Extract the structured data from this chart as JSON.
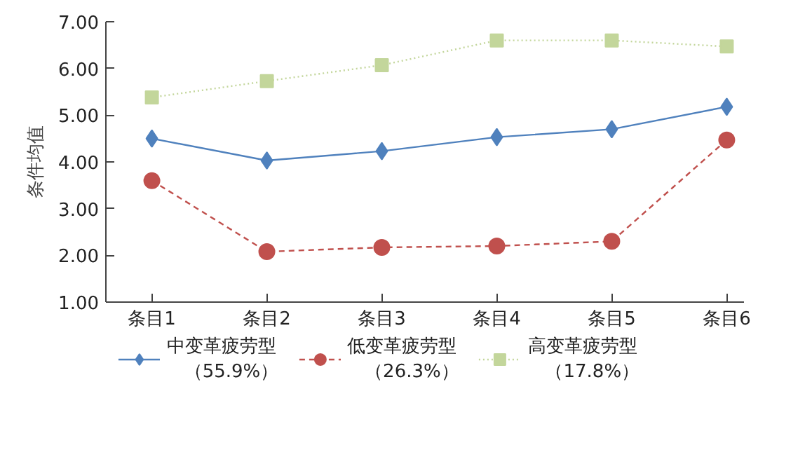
{
  "chart_data": {
    "type": "line",
    "ylabel": "条件均值",
    "categories": [
      "条目1",
      "条目2",
      "条目3",
      "条目4",
      "条目5",
      "条目6"
    ],
    "ylim": [
      1.0,
      7.0
    ],
    "yticks": [
      {
        "value": 1,
        "label": "1.00"
      },
      {
        "value": 2,
        "label": "2.00"
      },
      {
        "value": 3,
        "label": "3.00"
      },
      {
        "value": 4,
        "label": "4.00"
      },
      {
        "value": 5,
        "label": "5.00"
      },
      {
        "value": 6,
        "label": "6.00"
      },
      {
        "value": 7,
        "label": "7.00"
      }
    ],
    "grid": false,
    "legend": "bottom",
    "series": [
      {
        "name": "中变革疲劳型（55.9%）",
        "color": "#4f81bd",
        "marker": "diamond",
        "line_style": "solid",
        "values": [
          4.5,
          4.03,
          4.23,
          4.53,
          4.7,
          5.18
        ]
      },
      {
        "name": "低变革疲劳型（26.3%）",
        "color": "#c0504d",
        "marker": "circle",
        "line_style": "dashed",
        "values": [
          3.6,
          2.08,
          2.17,
          2.2,
          2.3,
          4.47
        ]
      },
      {
        "name": "高变革疲劳型（17.8%）",
        "color": "#c3d69b",
        "marker": "square",
        "line_style": "dotted",
        "values": [
          5.38,
          5.73,
          6.07,
          6.6,
          6.6,
          6.47
        ]
      }
    ]
  }
}
